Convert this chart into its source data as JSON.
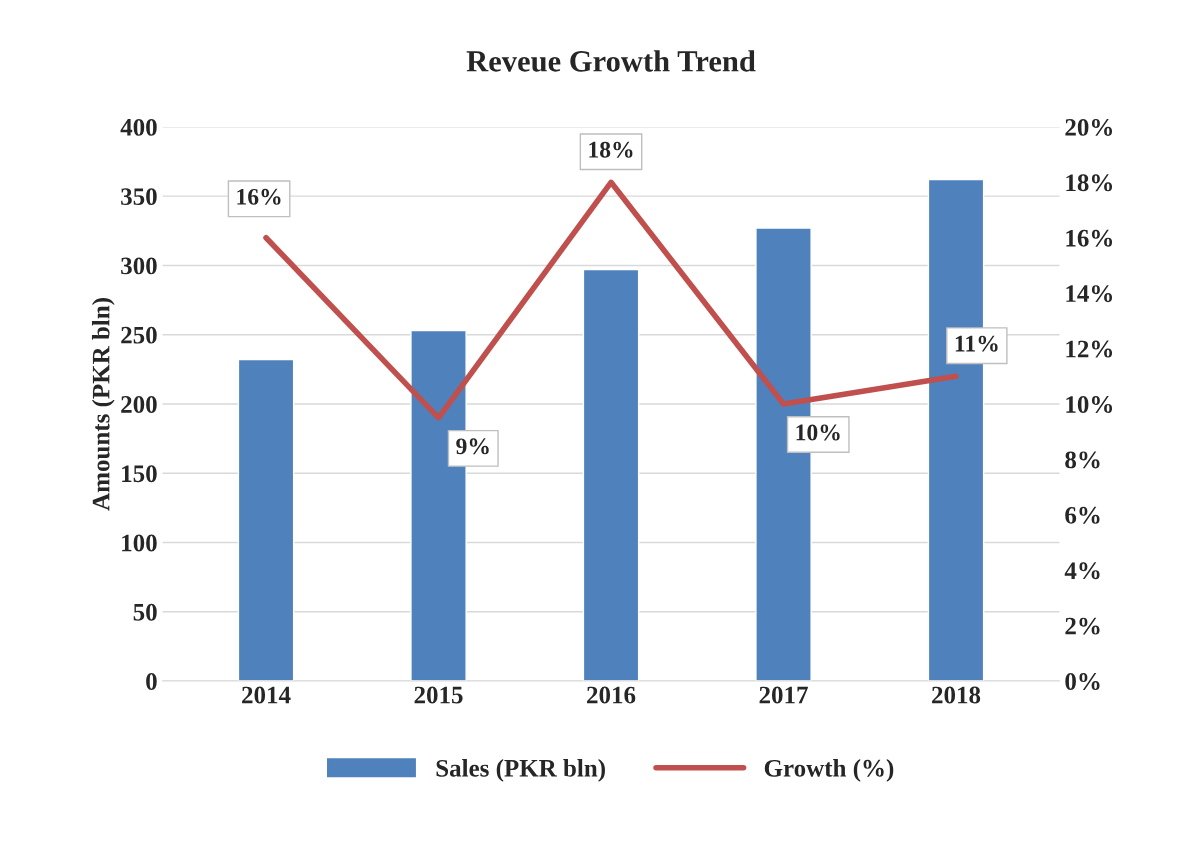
{
  "chart_data": {
    "type": "bar",
    "title": "Reveue Growth Trend",
    "ylabel": "Amounts (PKR bln)",
    "categories": [
      "2014",
      "2015",
      "2016",
      "2017",
      "2018"
    ],
    "series": [
      {
        "name": "Sales (PKR bln)",
        "color": "#4f81bd",
        "values": [
          232,
          253,
          297,
          327,
          362
        ]
      },
      {
        "name": "Growth (%)",
        "type": "line",
        "axis": "y2",
        "color": "#c0504d",
        "values": [
          16,
          9.5,
          18,
          10,
          11
        ],
        "value_labels": [
          "16%",
          "9%",
          "18%",
          "10%",
          "11%"
        ]
      }
    ],
    "ylim": [
      0,
      400
    ],
    "yticks": [
      0,
      50,
      100,
      150,
      200,
      250,
      300,
      350,
      400
    ],
    "y2lim": [
      0,
      20
    ],
    "y2ticks": [
      {
        "value": 0,
        "label": "0%"
      },
      {
        "value": 2,
        "label": "2%"
      },
      {
        "value": 4,
        "label": "4%"
      },
      {
        "value": 6,
        "label": "6%"
      },
      {
        "value": 8,
        "label": "8%"
      },
      {
        "value": 10,
        "label": "10%"
      },
      {
        "value": 12,
        "label": "12%"
      },
      {
        "value": 14,
        "label": "14%"
      },
      {
        "value": 16,
        "label": "16%"
      },
      {
        "value": 18,
        "label": "18%"
      },
      {
        "value": 20,
        "label": "20%"
      }
    ],
    "grid": "y",
    "legend": "bottom",
    "marker": "none",
    "line_style": "solid"
  }
}
